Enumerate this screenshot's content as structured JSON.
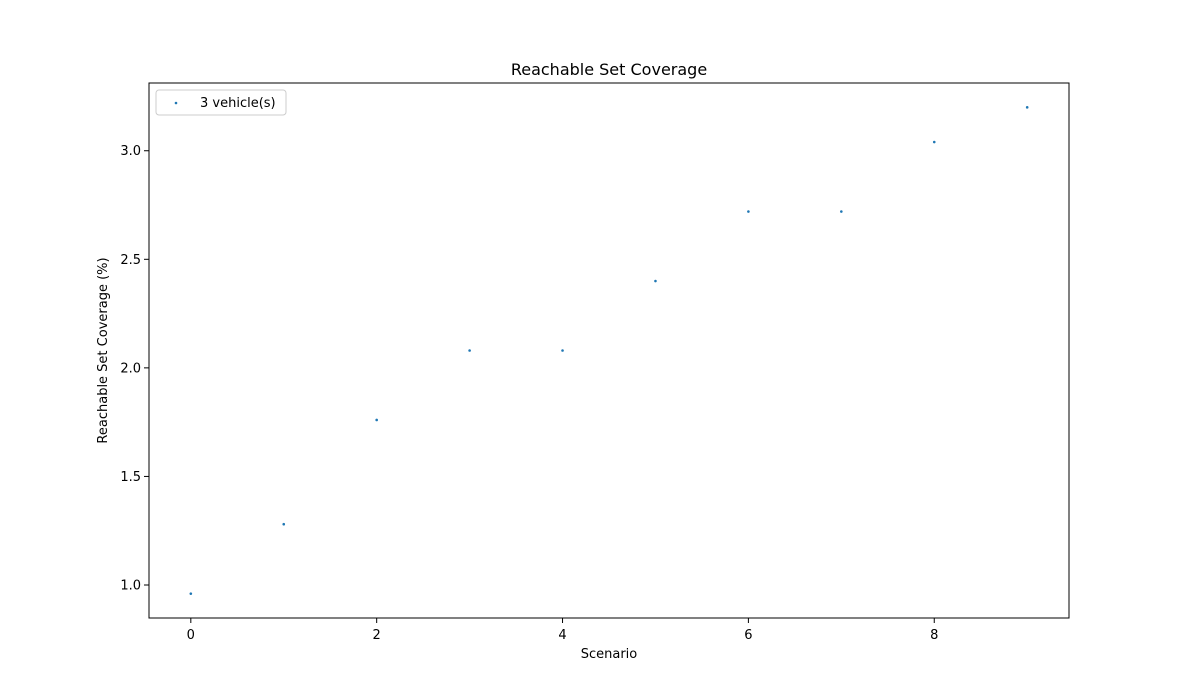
{
  "chart_data": {
    "type": "scatter",
    "title": "Reachable Set Coverage",
    "xlabel": "Scenario",
    "ylabel": "Reachable Set Coverage (%)",
    "xlim": [
      -0.45,
      9.45
    ],
    "ylim": [
      0.848,
      3.312
    ],
    "xticks": [
      0,
      2,
      4,
      6,
      8
    ],
    "yticks": [
      1.0,
      1.5,
      2.0,
      2.5,
      3.0
    ],
    "grid": false,
    "legend_position": "top-left",
    "series": [
      {
        "name": "3 vehicle(s)",
        "color": "#1f77b4",
        "x": [
          0,
          1,
          2,
          3,
          4,
          5,
          6,
          7,
          8,
          9
        ],
        "y": [
          0.96,
          1.28,
          1.76,
          2.08,
          2.08,
          2.4,
          2.72,
          2.72,
          3.04,
          3.2
        ]
      }
    ]
  }
}
